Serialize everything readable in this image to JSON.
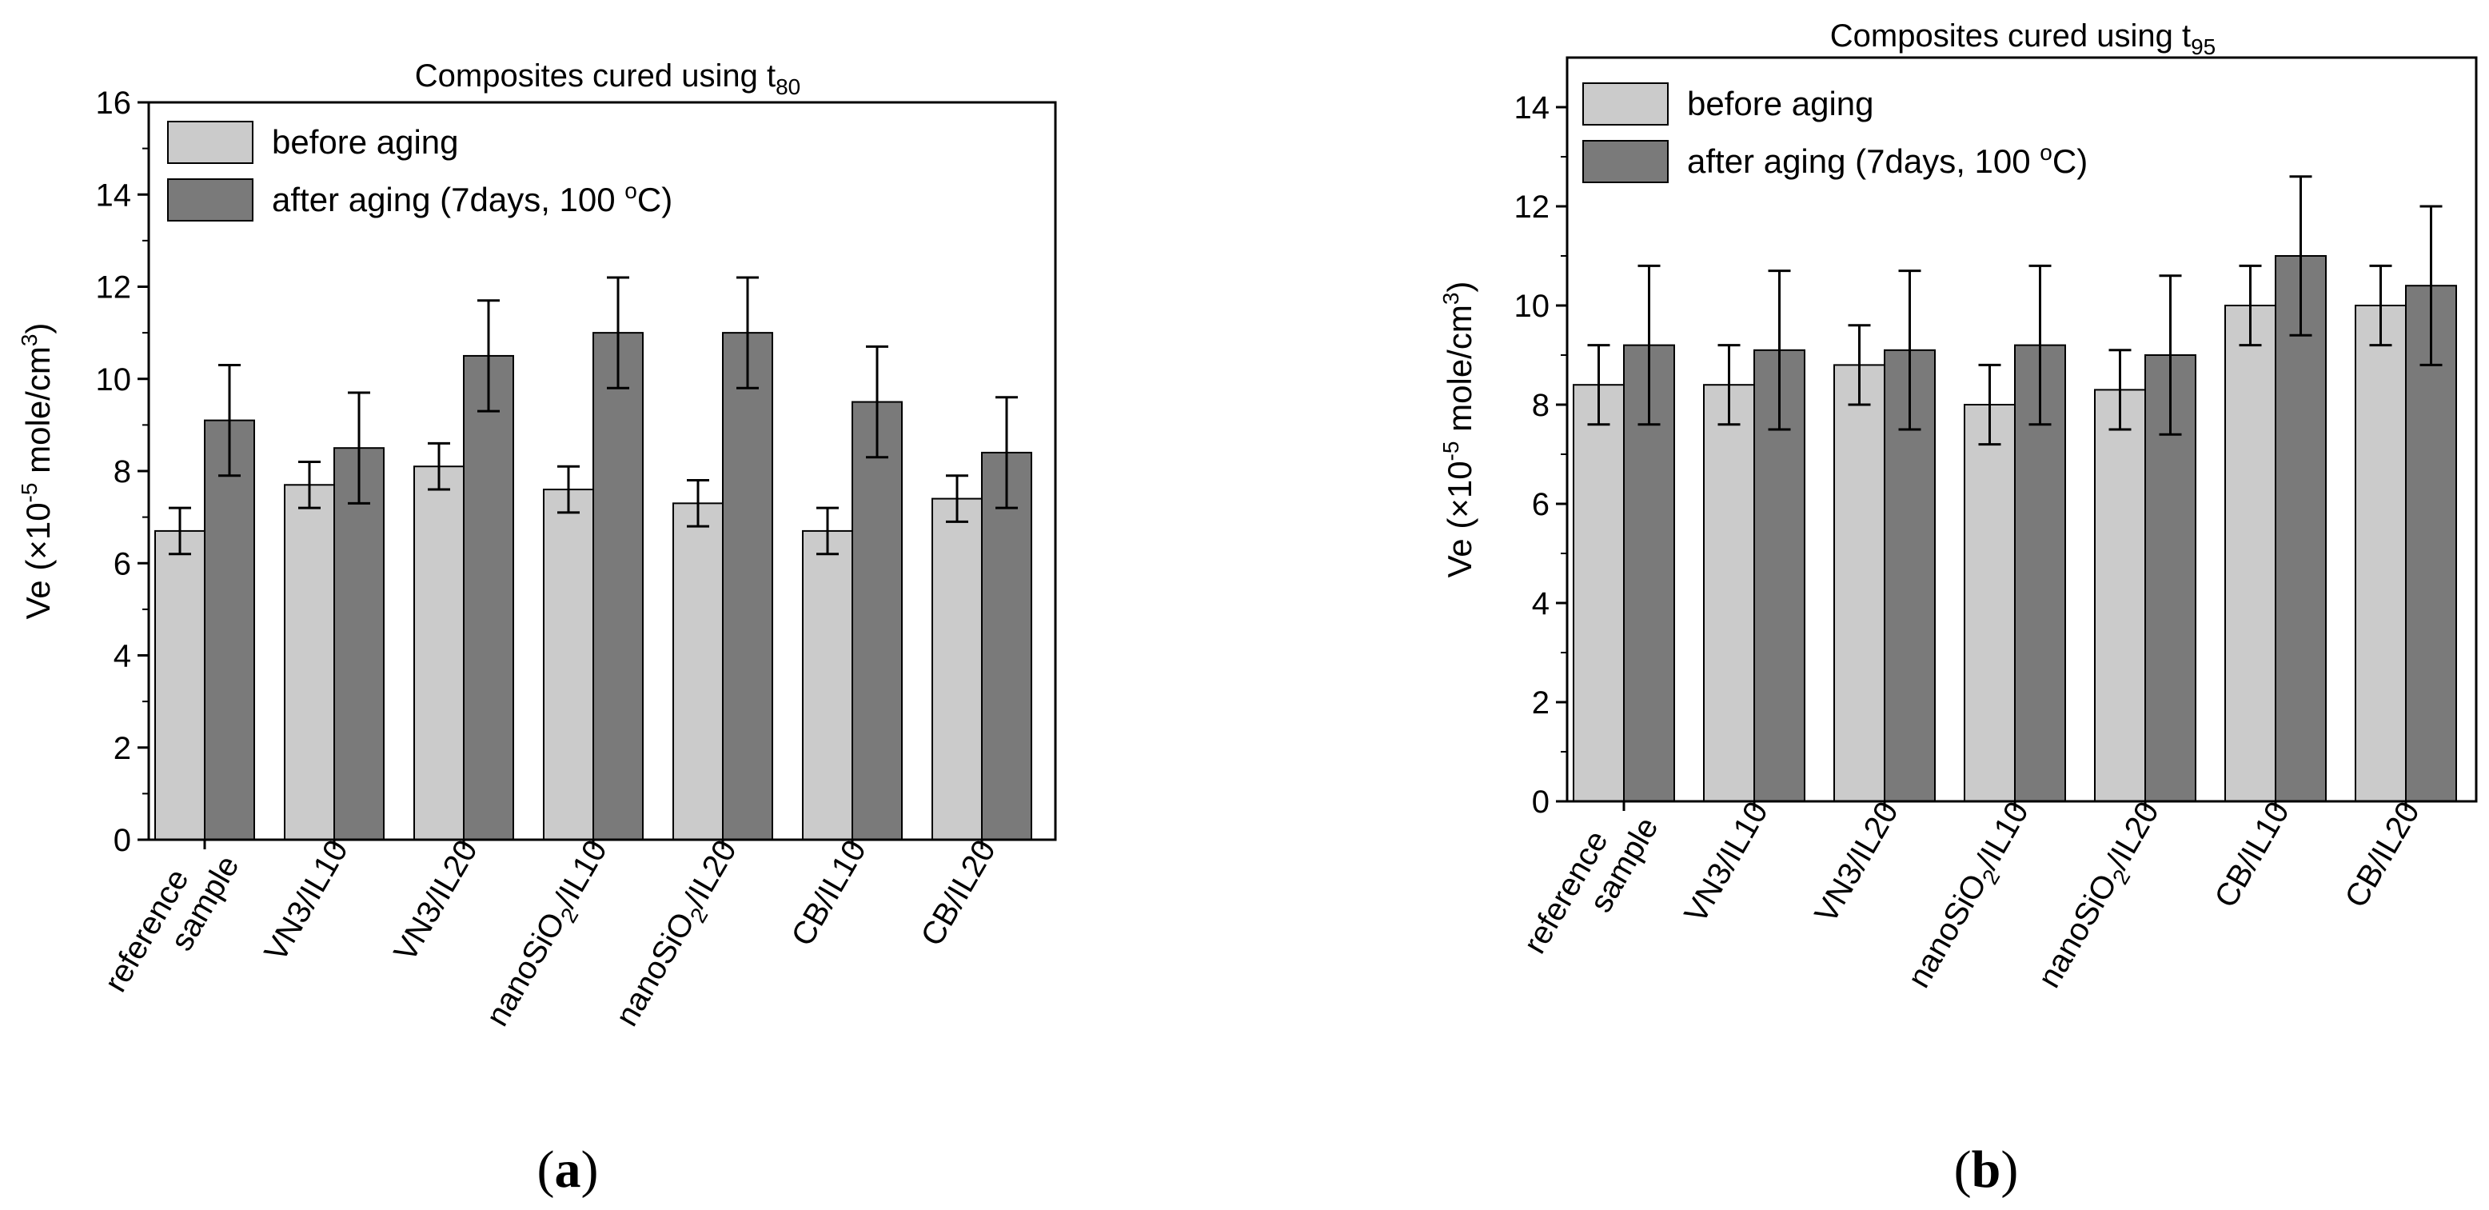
{
  "figure": {
    "panels": [
      {
        "tag_open": "(",
        "tag_letter": "a",
        "tag_close": ")"
      },
      {
        "tag_open": "(",
        "tag_letter": "b",
        "tag_close": ")"
      }
    ]
  },
  "colors": {
    "before": "#cbcbcb",
    "after": "#7a7a7a",
    "axis": "#000000",
    "background": "#ffffff"
  },
  "chart_data": [
    {
      "type": "bar",
      "title": {
        "text": "Composites cured using t",
        "sub": "80"
      },
      "ylabel": {
        "pre": "Ve (×10",
        "sup1": "-5",
        "mid": " mole/cm",
        "sup2": "3",
        "post": ")"
      },
      "ylim": [
        0,
        16
      ],
      "yticks": [
        0,
        2,
        4,
        6,
        8,
        10,
        12,
        14,
        16
      ],
      "categories": [
        {
          "lines": [
            "reference",
            "sample"
          ]
        },
        {
          "main": "VN3/IL10"
        },
        {
          "main": "VN3/IL20"
        },
        {
          "main": "nanoSiO",
          "sub": "2",
          "rest": "/IL10"
        },
        {
          "main": "nanoSiO",
          "sub": "2",
          "rest": "/IL20"
        },
        {
          "main": "CB/IL10"
        },
        {
          "main": "CB/IL20"
        }
      ],
      "series": [
        {
          "name": "before aging",
          "values": [
            6.7,
            7.7,
            8.1,
            7.6,
            7.3,
            6.7,
            7.4
          ],
          "errors": [
            0.5,
            0.5,
            0.5,
            0.5,
            0.5,
            0.5,
            0.5
          ]
        },
        {
          "name": "after aging (7days, 100 °C)",
          "name_pre": "after aging (7days, 100 ",
          "name_sup": "o",
          "name_post": "C)",
          "values": [
            9.1,
            8.5,
            10.5,
            11.0,
            11.0,
            9.5,
            8.4
          ],
          "errors": [
            1.2,
            1.2,
            1.2,
            1.2,
            1.2,
            1.2,
            1.2
          ]
        }
      ],
      "legend": "top-left"
    },
    {
      "type": "bar",
      "title": {
        "text": "Composites cured using t",
        "sub": "95"
      },
      "ylabel": {
        "pre": "Ve (×10",
        "sup1": "-5",
        "mid": " mole/cm",
        "sup2": "3",
        "post": ")"
      },
      "ylim": [
        0,
        15
      ],
      "yticks": [
        0,
        2,
        4,
        6,
        8,
        10,
        12,
        14
      ],
      "categories": [
        {
          "lines": [
            "reference",
            "sample"
          ]
        },
        {
          "main": "VN3/IL10"
        },
        {
          "main": "VN3/IL20"
        },
        {
          "main": "nanoSiO",
          "sub": "2",
          "rest": "/IL10"
        },
        {
          "main": "nanoSiO",
          "sub": "2",
          "rest": "/IL20"
        },
        {
          "main": "CB/IL10"
        },
        {
          "main": "CB/IL20"
        }
      ],
      "series": [
        {
          "name": "before aging",
          "values": [
            8.4,
            8.4,
            8.8,
            8.0,
            8.3,
            10.0,
            10.0
          ],
          "errors": [
            0.8,
            0.8,
            0.8,
            0.8,
            0.8,
            0.8,
            0.8
          ]
        },
        {
          "name": "after aging (7days, 100 °C)",
          "name_pre": "after aging (7days, 100 ",
          "name_sup": "o",
          "name_post": "C)",
          "values": [
            9.2,
            9.1,
            9.1,
            9.2,
            9.0,
            11.0,
            10.4
          ],
          "errors": [
            1.6,
            1.6,
            1.6,
            1.6,
            1.6,
            1.6,
            1.6
          ]
        }
      ],
      "legend": "top-left"
    }
  ]
}
